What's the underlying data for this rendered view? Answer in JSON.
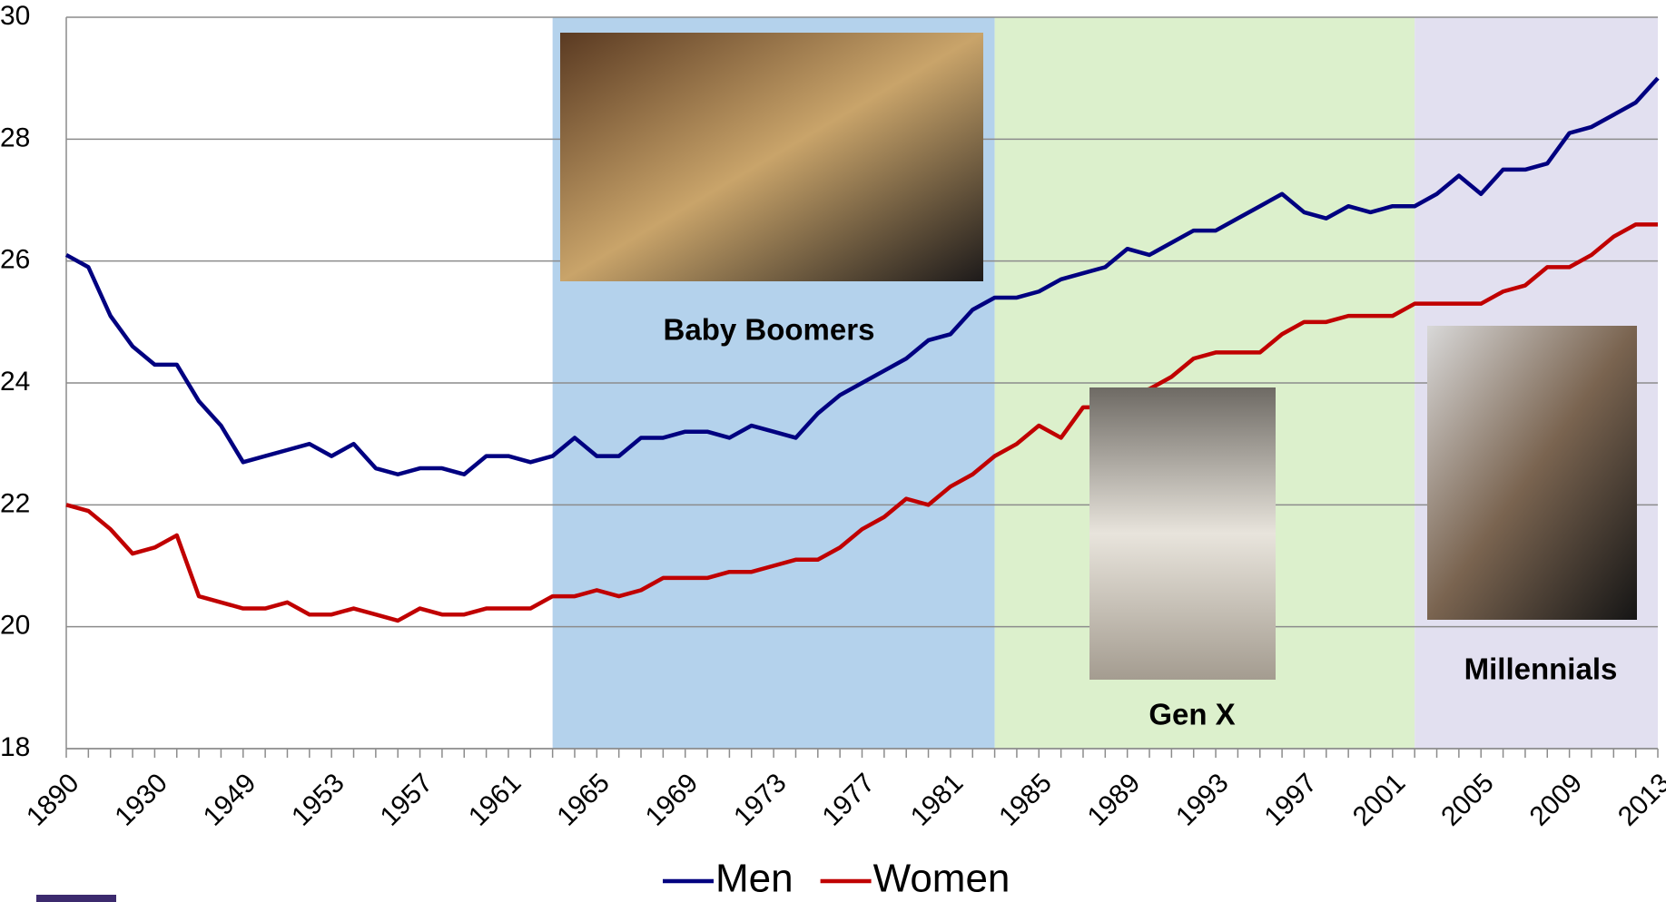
{
  "chart_data": {
    "type": "line",
    "categories": [
      "1890",
      null,
      null,
      null,
      "1930",
      null,
      null,
      null,
      "1949",
      null,
      null,
      null,
      "1953",
      null,
      null,
      null,
      "1957",
      null,
      null,
      null,
      "1961",
      null,
      null,
      null,
      "1965",
      null,
      null,
      null,
      "1969",
      null,
      null,
      null,
      "1973",
      null,
      null,
      null,
      "1977",
      null,
      null,
      null,
      "1981",
      null,
      null,
      null,
      "1985",
      null,
      null,
      null,
      "1989",
      null,
      null,
      null,
      "1993",
      null,
      null,
      null,
      "1997",
      null,
      null,
      null,
      "2001",
      null,
      null,
      null,
      "2005",
      null,
      null,
      null,
      "2009",
      null,
      null,
      null,
      "2013"
    ],
    "series": [
      {
        "name": "Men",
        "color": "#000080",
        "values": [
          26.1,
          25.9,
          25.1,
          24.6,
          24.3,
          24.3,
          23.7,
          23.3,
          22.7,
          22.8,
          22.9,
          23.0,
          22.8,
          23.0,
          22.6,
          22.5,
          22.6,
          22.6,
          22.5,
          22.8,
          22.8,
          22.7,
          22.8,
          23.1,
          22.8,
          22.8,
          23.1,
          23.1,
          23.2,
          23.2,
          23.1,
          23.3,
          23.2,
          23.1,
          23.5,
          23.8,
          24.0,
          24.2,
          24.4,
          24.7,
          24.8,
          25.2,
          25.4,
          25.4,
          25.5,
          25.7,
          25.8,
          25.9,
          26.2,
          26.1,
          26.3,
          26.5,
          26.5,
          26.7,
          26.9,
          27.1,
          26.8,
          26.7,
          26.9,
          26.8,
          26.9,
          26.9,
          27.1,
          27.4,
          27.1,
          27.5,
          27.5,
          27.6,
          28.1,
          28.2,
          28.4,
          28.6,
          29.0
        ]
      },
      {
        "name": "Women",
        "color": "#c00000",
        "values": [
          22.0,
          21.9,
          21.6,
          21.2,
          21.3,
          21.5,
          20.5,
          20.4,
          20.3,
          20.3,
          20.4,
          20.2,
          20.2,
          20.3,
          20.2,
          20.1,
          20.3,
          20.2,
          20.2,
          20.3,
          20.3,
          20.3,
          20.5,
          20.5,
          20.6,
          20.5,
          20.6,
          20.8,
          20.8,
          20.8,
          20.9,
          20.9,
          21.0,
          21.1,
          21.1,
          21.3,
          21.6,
          21.8,
          22.1,
          22.0,
          22.3,
          22.5,
          22.8,
          23.0,
          23.3,
          23.1,
          23.6,
          23.6,
          23.8,
          23.9,
          24.1,
          24.4,
          24.5,
          24.5,
          24.5,
          24.8,
          25.0,
          25.0,
          25.1,
          25.1,
          25.1,
          25.3,
          25.3,
          25.3,
          25.3,
          25.5,
          25.6,
          25.9,
          25.9,
          26.1,
          26.4,
          26.6,
          26.6
        ]
      }
    ],
    "bands": [
      {
        "label": "Baby Boomers",
        "start": 22,
        "end": 42,
        "color": "#b4d2ec"
      },
      {
        "label": "Gen X",
        "start": 42,
        "end": 61,
        "color": "#dcf0cc"
      },
      {
        "label": "Millennials",
        "start": 61,
        "end": 72,
        "color": "#e2e0f0"
      }
    ],
    "ylim": [
      18,
      30
    ],
    "yticks": [
      18,
      20,
      22,
      24,
      26,
      28,
      30
    ],
    "grid": true,
    "legend": "bottom"
  }
}
